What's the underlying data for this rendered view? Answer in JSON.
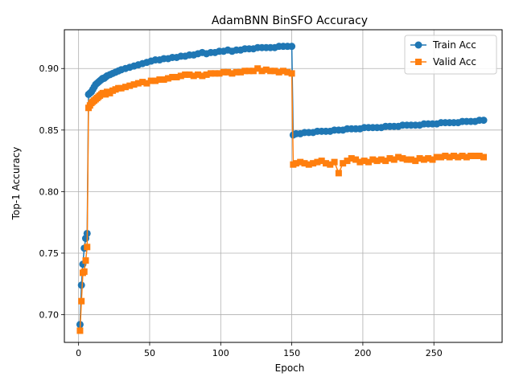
{
  "chart_data": {
    "type": "line",
    "title": "AdamBNN BinSFO Accuracy",
    "xlabel": "Epoch",
    "ylabel": "Top-1 Accuracy",
    "xlim": [
      -10,
      298
    ],
    "ylim": [
      0.6775,
      0.9315
    ],
    "xticks": [
      0,
      50,
      100,
      150,
      200,
      250
    ],
    "yticks": [
      0.7,
      0.75,
      0.8,
      0.85,
      0.9
    ],
    "xtick_labels": [
      "0",
      "50",
      "100",
      "150",
      "200",
      "250"
    ],
    "ytick_labels": [
      "0.70",
      "0.75",
      "0.80",
      "0.85",
      "0.90"
    ],
    "grid": true,
    "legend": "top-right",
    "colors": {
      "train": "#1f77b4",
      "valid": "#ff7f0e"
    },
    "series": [
      {
        "name": "Train Acc",
        "marker": "circle",
        "x": [
          1,
          2,
          3,
          4,
          5,
          6,
          7,
          8,
          9,
          10,
          11,
          12,
          13,
          14,
          15,
          16,
          17,
          18,
          19,
          20,
          22,
          24,
          26,
          28,
          30,
          33,
          36,
          39,
          42,
          45,
          48,
          51,
          54,
          57,
          60,
          63,
          66,
          69,
          72,
          75,
          78,
          81,
          84,
          87,
          90,
          93,
          96,
          99,
          102,
          105,
          108,
          111,
          114,
          117,
          120,
          123,
          126,
          129,
          132,
          135,
          138,
          141,
          144,
          147,
          150,
          151,
          153,
          156,
          159,
          162,
          165,
          168,
          171,
          174,
          177,
          180,
          183,
          186,
          189,
          192,
          195,
          198,
          201,
          204,
          207,
          210,
          213,
          216,
          219,
          222,
          225,
          228,
          231,
          234,
          237,
          240,
          243,
          246,
          249,
          252,
          255,
          258,
          261,
          264,
          267,
          270,
          273,
          276,
          279,
          282,
          285
        ],
        "values": [
          0.692,
          0.724,
          0.741,
          0.754,
          0.762,
          0.766,
          0.879,
          0.88,
          0.881,
          0.883,
          0.885,
          0.887,
          0.888,
          0.889,
          0.89,
          0.891,
          0.892,
          0.892,
          0.893,
          0.894,
          0.895,
          0.896,
          0.897,
          0.898,
          0.899,
          0.9,
          0.901,
          0.902,
          0.903,
          0.904,
          0.905,
          0.906,
          0.907,
          0.907,
          0.908,
          0.908,
          0.909,
          0.909,
          0.91,
          0.91,
          0.911,
          0.911,
          0.912,
          0.913,
          0.912,
          0.913,
          0.913,
          0.914,
          0.914,
          0.915,
          0.914,
          0.915,
          0.915,
          0.916,
          0.916,
          0.916,
          0.917,
          0.917,
          0.917,
          0.917,
          0.917,
          0.918,
          0.918,
          0.918,
          0.918,
          0.846,
          0.847,
          0.847,
          0.848,
          0.848,
          0.848,
          0.849,
          0.849,
          0.849,
          0.849,
          0.85,
          0.85,
          0.85,
          0.851,
          0.851,
          0.851,
          0.851,
          0.852,
          0.852,
          0.852,
          0.852,
          0.852,
          0.853,
          0.853,
          0.853,
          0.853,
          0.854,
          0.854,
          0.854,
          0.854,
          0.854,
          0.855,
          0.855,
          0.855,
          0.855,
          0.856,
          0.856,
          0.856,
          0.856,
          0.856,
          0.857,
          0.857,
          0.857,
          0.857,
          0.858,
          0.858
        ]
      },
      {
        "name": "Valid Acc",
        "marker": "square",
        "x": [
          1,
          2,
          3,
          4,
          5,
          6,
          7,
          8,
          9,
          10,
          11,
          12,
          13,
          14,
          15,
          16,
          17,
          18,
          19,
          20,
          22,
          24,
          26,
          28,
          30,
          33,
          36,
          39,
          42,
          45,
          48,
          51,
          54,
          57,
          60,
          63,
          66,
          69,
          72,
          75,
          78,
          81,
          84,
          87,
          90,
          93,
          96,
          99,
          102,
          105,
          108,
          111,
          114,
          117,
          120,
          123,
          126,
          129,
          132,
          135,
          138,
          141,
          144,
          147,
          150,
          151,
          153,
          156,
          159,
          162,
          165,
          168,
          171,
          174,
          177,
          180,
          183,
          186,
          189,
          192,
          195,
          198,
          201,
          204,
          207,
          210,
          213,
          216,
          219,
          222,
          225,
          228,
          231,
          234,
          237,
          240,
          243,
          246,
          249,
          252,
          255,
          258,
          261,
          264,
          267,
          270,
          273,
          276,
          279,
          282,
          285
        ],
        "values": [
          0.687,
          0.711,
          0.734,
          0.735,
          0.744,
          0.755,
          0.868,
          0.87,
          0.872,
          0.873,
          0.874,
          0.875,
          0.876,
          0.877,
          0.878,
          0.879,
          0.88,
          0.88,
          0.879,
          0.881,
          0.88,
          0.882,
          0.883,
          0.884,
          0.884,
          0.885,
          0.886,
          0.887,
          0.888,
          0.889,
          0.888,
          0.89,
          0.89,
          0.891,
          0.891,
          0.892,
          0.893,
          0.893,
          0.894,
          0.895,
          0.895,
          0.894,
          0.895,
          0.894,
          0.895,
          0.896,
          0.896,
          0.896,
          0.897,
          0.897,
          0.896,
          0.897,
          0.897,
          0.898,
          0.898,
          0.898,
          0.9,
          0.898,
          0.899,
          0.898,
          0.898,
          0.897,
          0.898,
          0.897,
          0.896,
          0.822,
          0.823,
          0.824,
          0.823,
          0.822,
          0.823,
          0.824,
          0.825,
          0.823,
          0.822,
          0.824,
          0.815,
          0.823,
          0.825,
          0.827,
          0.826,
          0.824,
          0.825,
          0.824,
          0.826,
          0.825,
          0.826,
          0.825,
          0.827,
          0.826,
          0.828,
          0.827,
          0.826,
          0.826,
          0.825,
          0.827,
          0.826,
          0.827,
          0.826,
          0.828,
          0.828,
          0.829,
          0.828,
          0.829,
          0.828,
          0.829,
          0.828,
          0.829,
          0.829,
          0.829,
          0.828
        ]
      }
    ]
  }
}
